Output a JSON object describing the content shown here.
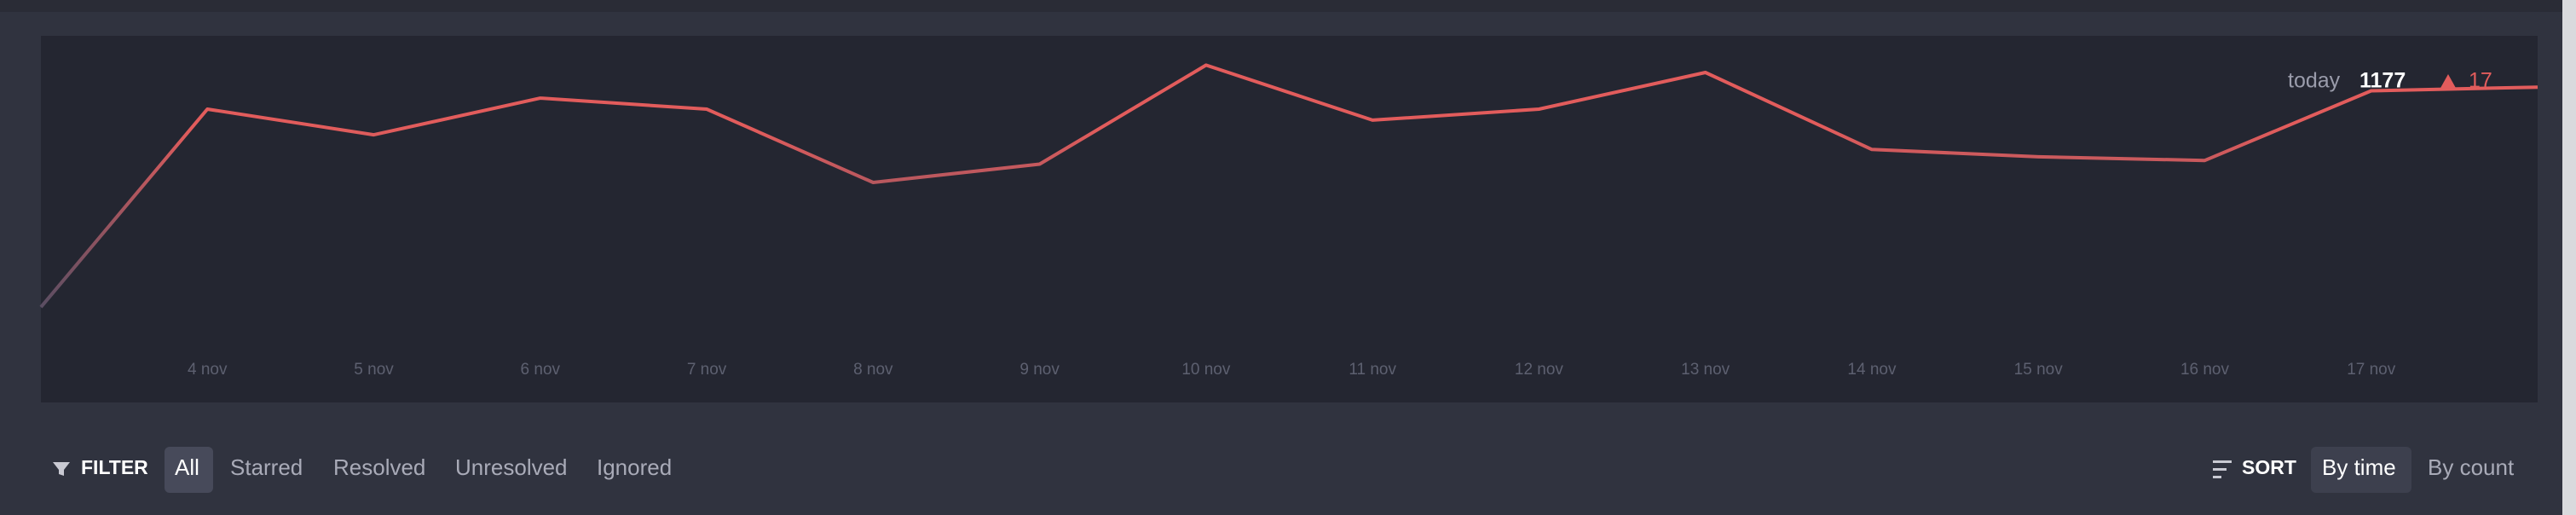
{
  "chart_data": {
    "type": "line",
    "categories": [
      null,
      "4 nov",
      "5 nov",
      "6 nov",
      "7 nov",
      "8 nov",
      "9 nov",
      "10 nov",
      "11 nov",
      "12 nov",
      "13 nov",
      "14 nov",
      "15 nov",
      "16 nov",
      "17 nov",
      null
    ],
    "series": [
      {
        "color": "#e25c5c",
        "values": [
          26,
          80,
          73,
          83,
          80,
          60,
          65,
          92,
          77,
          80,
          90,
          69,
          67,
          66,
          85,
          86
        ]
      }
    ],
    "gradient": [
      "#3b4a64",
      "#e25c5c"
    ],
    "ylim": [
      0,
      100
    ]
  },
  "summary": {
    "label": "today",
    "value": "1177",
    "change": "17"
  },
  "filter": {
    "label": "FILTER",
    "options": [
      "All",
      "Starred",
      "Resolved",
      "Unresolved",
      "Ignored"
    ]
  },
  "sort": {
    "label": "SORT",
    "options": [
      "By time",
      "By count"
    ]
  }
}
